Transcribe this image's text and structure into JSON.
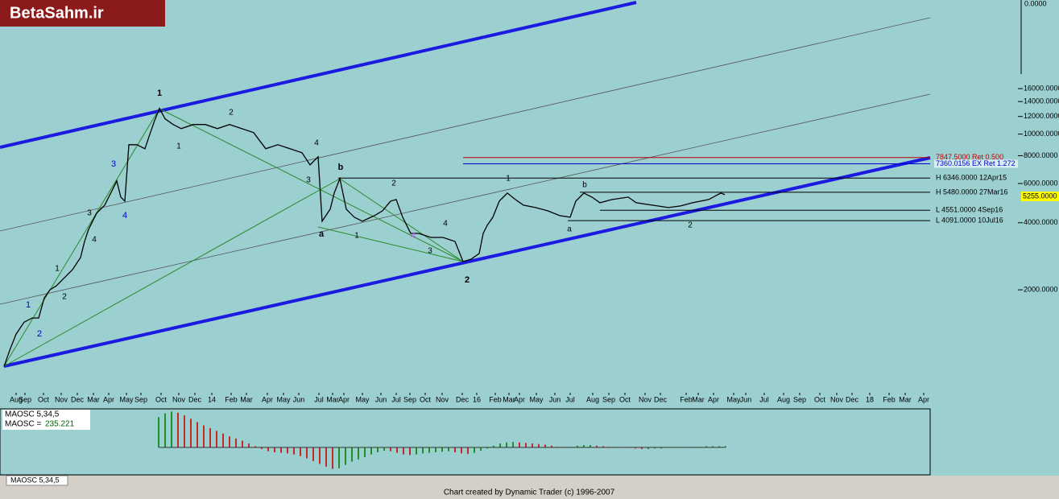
{
  "logo": "BetaSahm.ir",
  "footer": "Chart created by Dynamic Trader  (c) 1996-2007",
  "tab": "MAOSC 5,34,5",
  "chart_data": [
    {
      "type": "line",
      "ylog": true,
      "ylim": [
        690,
        40000
      ],
      "xlim": [
        0,
        289
      ],
      "top_label": "0.0000",
      "yticks": [
        {
          "value": 2000,
          "label": "2000.0000"
        },
        {
          "value": 4000,
          "label": "4000.0000"
        },
        {
          "value": 6000,
          "label": "6000.0000"
        },
        {
          "value": 8000,
          "label": "8000.0000"
        },
        {
          "value": 10000,
          "label": "10000.0000"
        },
        {
          "value": 12000,
          "label": "12000.0000"
        },
        {
          "value": 14000,
          "label": "14000.0000"
        },
        {
          "value": 16000,
          "label": "16000.0000"
        }
      ],
      "xticks": [
        {
          "value": 5,
          "label": "Aug"
        },
        {
          "value": 7.75,
          "label": "Sep"
        },
        {
          "value": 13.5,
          "label": "Oct"
        },
        {
          "value": 19,
          "label": "Nov"
        },
        {
          "value": 24,
          "label": "Dec"
        },
        {
          "value": 29,
          "label": "Mar"
        },
        {
          "value": 33.75,
          "label": "Apr"
        },
        {
          "value": 39.25,
          "label": "May"
        },
        {
          "value": 43.75,
          "label": "Sep"
        },
        {
          "value": 50,
          "label": "Oct"
        },
        {
          "value": 55.5,
          "label": "Nov"
        },
        {
          "value": 60.5,
          "label": "Dec"
        },
        {
          "value": 65.75,
          "label": "14"
        },
        {
          "value": 71.75,
          "label": "Feb"
        },
        {
          "value": 76.5,
          "label": "Mar"
        },
        {
          "value": 83,
          "label": "Apr"
        },
        {
          "value": 88,
          "label": "May"
        },
        {
          "value": 92.75,
          "label": "Jun"
        },
        {
          "value": 99,
          "label": "Jul"
        },
        {
          "value": 103.25,
          "label": "Mar"
        },
        {
          "value": 106.75,
          "label": "Apr"
        },
        {
          "value": 112.5,
          "label": "May"
        },
        {
          "value": 118.25,
          "label": "Jun"
        },
        {
          "value": 123,
          "label": "Jul"
        },
        {
          "value": 127.25,
          "label": "Sep"
        },
        {
          "value": 132,
          "label": "Oct"
        },
        {
          "value": 137.25,
          "label": "Nov"
        },
        {
          "value": 143.5,
          "label": "Dec"
        },
        {
          "value": 148,
          "label": "16"
        },
        {
          "value": 153.75,
          "label": "Feb"
        },
        {
          "value": 158,
          "label": "Mar"
        },
        {
          "value": 161.25,
          "label": "Apr"
        },
        {
          "value": 166.5,
          "label": "May"
        },
        {
          "value": 172.25,
          "label": "Jun"
        },
        {
          "value": 177,
          "label": "Jul"
        },
        {
          "value": 184,
          "label": "Aug"
        },
        {
          "value": 189,
          "label": "Sep"
        },
        {
          "value": 194,
          "label": "Oct"
        },
        {
          "value": 200.25,
          "label": "Nov"
        },
        {
          "value": 205,
          "label": "Dec"
        },
        {
          "value": 213,
          "label": "Feb"
        },
        {
          "value": 216.75,
          "label": "Mar"
        },
        {
          "value": 221.5,
          "label": "Apr"
        },
        {
          "value": 227.75,
          "label": "May"
        },
        {
          "value": 231.5,
          "label": "Jun"
        },
        {
          "value": 237.25,
          "label": "Jul"
        },
        {
          "value": 243.25,
          "label": "Aug"
        },
        {
          "value": 248.25,
          "label": "Sep"
        },
        {
          "value": 254.5,
          "label": "Oct"
        },
        {
          "value": 259.75,
          "label": "Nov"
        },
        {
          "value": 264.5,
          "label": "Dec"
        },
        {
          "value": 270,
          "label": "18"
        },
        {
          "value": 276,
          "label": "Feb"
        },
        {
          "value": 281,
          "label": "Mar"
        },
        {
          "value": 286.75,
          "label": "Apr"
        }
      ],
      "series": [
        {
          "color": "#000000",
          "x": [
            1.25,
            3,
            5,
            7.5,
            10,
            12,
            13.75,
            15.5,
            17.5,
            20,
            22.5,
            25,
            26.25,
            27.5,
            30,
            32.5,
            35,
            36.25,
            37.5,
            38.75,
            40,
            42.5,
            45,
            46.25,
            48,
            49.5,
            51.25,
            53.75,
            56.25,
            60,
            63.75,
            67.5,
            71.25,
            75,
            78.75,
            82.5,
            86.25,
            90,
            93.75,
            96.25,
            98.75,
            100,
            102.5,
            103.75,
            105.5,
            107.5,
            110,
            112.5,
            116.25,
            118.75,
            121.25,
            123,
            125,
            127.5,
            130,
            133.75,
            137.5,
            141.25,
            143.75,
            146.25,
            148.75,
            150,
            151.25,
            153,
            155,
            157.5,
            160,
            162.5,
            166.25,
            170,
            173.75,
            177,
            178.75,
            181.25,
            183.75,
            186.25,
            190,
            195,
            197.5,
            202.5,
            207.5,
            211.25,
            215,
            220,
            223.75,
            225
          ],
          "values": [
            906,
            1070,
            1265,
            1433,
            1494,
            1494,
            1840,
            2000,
            2085,
            2266,
            2463,
            2791,
            3297,
            3737,
            4415,
            4798,
            5669,
            6160,
            5214,
            5003,
            8963,
            8963,
            8597,
            9742,
            11510,
            13043,
            11704,
            11040,
            10589,
            11040,
            11040,
            10589,
            11040,
            10589,
            10157,
            8597,
            8963,
            8597,
            8248,
            7278,
            7910,
            4062,
            4601,
            5437,
            6317,
            4601,
            4234,
            4062,
            4306,
            4527,
            5003,
            5086,
            4234,
            3584,
            3584,
            3438,
            3438,
            3297,
            2678,
            2746,
            2910,
            3584,
            3896,
            4234,
            5003,
            5437,
            5086,
            4798,
            4680,
            4527,
            4306,
            4234,
            5003,
            5437,
            5214,
            4919,
            5086,
            5214,
            4919,
            4798,
            4680,
            4758,
            4919,
            5086,
            5437,
            5346
          ]
        }
      ],
      "levels": [
        {
          "value": 7847.5,
          "label": "7847.5000 Ret 0.500",
          "color": "#c00000"
        },
        {
          "value": 7360.0156,
          "label": "7360.0156 EX Ret 1.272",
          "color": "#0000cc"
        },
        {
          "value": 6346,
          "label": "H 6346.0000 12Apr15",
          "color": "#000000"
        },
        {
          "value": 5480,
          "label": "H 5480.0000 27Mar16",
          "color": "#000000"
        },
        {
          "value": 4551,
          "label": "L 4551.0000 4Sep16",
          "color": "#000000"
        },
        {
          "value": 4091,
          "label": "L 4091.0000 10Jul16",
          "color": "#000000"
        }
      ],
      "last_value": {
        "value": 5255,
        "label": "5255.0000"
      },
      "annotations": [
        {
          "text": "1",
          "color": "#000000"
        },
        {
          "text": "2",
          "color": "#000000"
        },
        {
          "text": "1",
          "color": "#000000"
        },
        {
          "text": "3",
          "color": "#000000"
        },
        {
          "text": "4",
          "color": "#000000"
        },
        {
          "text": "b",
          "color": "#000000"
        },
        {
          "text": "a",
          "color": "#000000"
        },
        {
          "text": "2",
          "color": "#000000"
        },
        {
          "text": "1",
          "color": "#000000"
        },
        {
          "text": "4",
          "color": "#000000"
        },
        {
          "text": "3",
          "color": "#000000"
        },
        {
          "text": "4",
          "color": "#b060e0"
        },
        {
          "text": "2",
          "color": "#000000"
        },
        {
          "text": "1",
          "color": "#000000"
        },
        {
          "text": "b",
          "color": "#000000"
        },
        {
          "text": "a",
          "color": "#000000"
        },
        {
          "text": "2",
          "color": "#000000"
        },
        {
          "text": "3",
          "color": "#0000cc"
        },
        {
          "text": "4",
          "color": "#0000cc"
        },
        {
          "text": "1",
          "color": "#0000cc"
        },
        {
          "text": "2",
          "color": "#0000cc"
        },
        {
          "text": "1",
          "color": "#000000"
        },
        {
          "text": "2",
          "color": "#000000"
        },
        {
          "text": "3",
          "color": "#000000"
        },
        {
          "text": "4",
          "color": "#000000"
        }
      ]
    },
    {
      "type": "bar",
      "title": "MAOSC 5,34,5",
      "readout_label": "MAOSC =",
      "readout": 235.221,
      "ylim": [
        -5000,
        7000
      ],
      "color_up": "#008000",
      "color_down": "#cc0000",
      "values": [
        5500,
        6200,
        6500,
        6300,
        5800,
        5200,
        4600,
        4000,
        3500,
        3000,
        2500,
        2000,
        1600,
        1200,
        700,
        200,
        -300,
        -700,
        -900,
        -1000,
        -1100,
        -1300,
        -1600,
        -2000,
        -2500,
        -3000,
        -3500,
        -3900,
        -3800,
        -3200,
        -2600,
        -2200,
        -1800,
        -1300,
        -900,
        -600,
        -700,
        -1000,
        -1300,
        -1400,
        -1300,
        -1100,
        -1000,
        -900,
        -800,
        -700,
        -900,
        -1100,
        -1200,
        -1000,
        -600,
        -200,
        300,
        700,
        900,
        1000,
        900,
        800,
        700,
        600,
        500,
        300,
        100,
        -100,
        100,
        300,
        400,
        400,
        300,
        200,
        100,
        100,
        0,
        -100,
        -200,
        -300,
        -300,
        -200,
        -200,
        -100,
        -100,
        -100,
        0,
        100,
        100,
        200,
        200,
        200,
        235.221
      ]
    }
  ]
}
